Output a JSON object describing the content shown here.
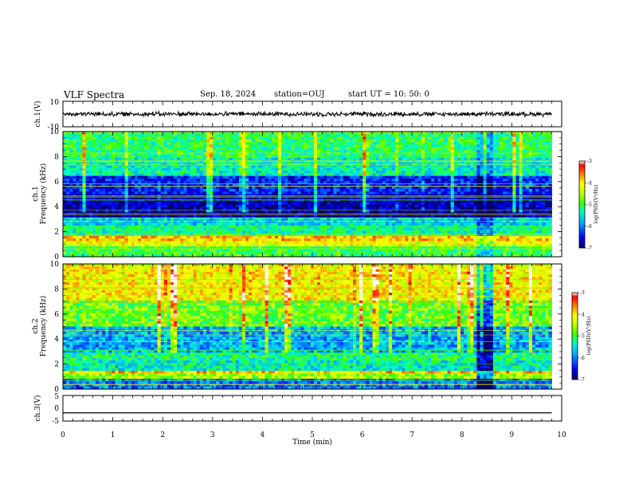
{
  "header": {
    "title": "VLF Spectra",
    "date": "Sep. 18, 2024",
    "station": "station=OUJ",
    "start": "start  UT =  10: 50: 0"
  },
  "colors": {
    "spectrogram_colormap": [
      "#000066",
      "#0000ff",
      "#00b0ff",
      "#00ffc0",
      "#3cff00",
      "#c8ff00",
      "#ffff00",
      "#ff8000",
      "#ff0000",
      "#ffffff"
    ],
    "trace": "#000000"
  },
  "chart_data": [
    {
      "type": "line",
      "panel": "ch1-waveform",
      "ylabel": "ch.1(V)",
      "ylim": [
        -10,
        10
      ],
      "yticks": [
        "10",
        "-10"
      ],
      "xlim": [
        0,
        10
      ],
      "description_values": {
        "center": 0,
        "amplitude_approx": 1.5
      }
    },
    {
      "type": "heatmap",
      "panel": "ch1-spectrogram",
      "ylabel_line1": "ch.1",
      "ylabel_line2": "Frequency (kHz)",
      "ylim": [
        0,
        10
      ],
      "yticks": [
        "0",
        "2",
        "4",
        "6",
        "8",
        "10"
      ],
      "xlim": [
        0,
        10
      ],
      "data_end_min": 9.8,
      "colorbar": {
        "label": "log(PSD)(V²/Hz)",
        "min": -7,
        "max": -3,
        "ticks": [
          "-3",
          "-4",
          "-5",
          "-6",
          "-7"
        ]
      },
      "bands": [
        {
          "from": 0,
          "to": 0.8,
          "level": -5.0
        },
        {
          "from": 0.8,
          "to": 1.2,
          "level": -4.2
        },
        {
          "from": 1.2,
          "to": 1.6,
          "level": -3.9
        },
        {
          "from": 1.6,
          "to": 2.4,
          "level": -5.3
        },
        {
          "from": 2.4,
          "to": 3.2,
          "level": -5.6
        },
        {
          "from": 3.2,
          "to": 5.0,
          "level": -6.8
        },
        {
          "from": 5.0,
          "to": 6.5,
          "level": -6.4
        },
        {
          "from": 6.5,
          "to": 8.0,
          "level": -5.4
        },
        {
          "from": 8.0,
          "to": 10.0,
          "level": -5.1
        }
      ]
    },
    {
      "type": "heatmap",
      "panel": "ch2-spectrogram",
      "ylabel_line1": "ch.2",
      "ylabel_line2": "Frequency (kHz)",
      "ylim": [
        0,
        10
      ],
      "yticks": [
        "0",
        "2",
        "4",
        "6",
        "8",
        "10"
      ],
      "xlim": [
        0,
        10
      ],
      "data_end_min": 9.8,
      "colorbar": {
        "label": "log(PSD)(V²/Hz)",
        "min": -7,
        "max": -3,
        "ticks": [
          "-3",
          "-4",
          "-5",
          "-6",
          "-7"
        ]
      },
      "bands": [
        {
          "from": 0,
          "to": 0.8,
          "level": -6.0
        },
        {
          "from": 0.8,
          "to": 1.2,
          "level": -4.6
        },
        {
          "from": 1.2,
          "to": 1.5,
          "level": -3.9
        },
        {
          "from": 1.5,
          "to": 2.2,
          "level": -5.4
        },
        {
          "from": 2.2,
          "to": 3.0,
          "level": -5.2
        },
        {
          "from": 3.0,
          "to": 5.0,
          "level": -5.8
        },
        {
          "from": 5.0,
          "to": 7.0,
          "level": -4.8
        },
        {
          "from": 7.0,
          "to": 10.0,
          "level": -4.1
        }
      ]
    },
    {
      "type": "line",
      "panel": "ch3-waveform",
      "ylabel": "ch.3(V)",
      "ylim": [
        -5,
        5
      ],
      "yticks": [
        "5",
        "0",
        "-5"
      ],
      "xlim": [
        0,
        10
      ],
      "values_constant": -1.8
    }
  ],
  "xaxis": {
    "label": "Time  (min)",
    "ticks": [
      "0",
      "1",
      "2",
      "3",
      "4",
      "5",
      "6",
      "7",
      "8",
      "9",
      "10"
    ]
  }
}
